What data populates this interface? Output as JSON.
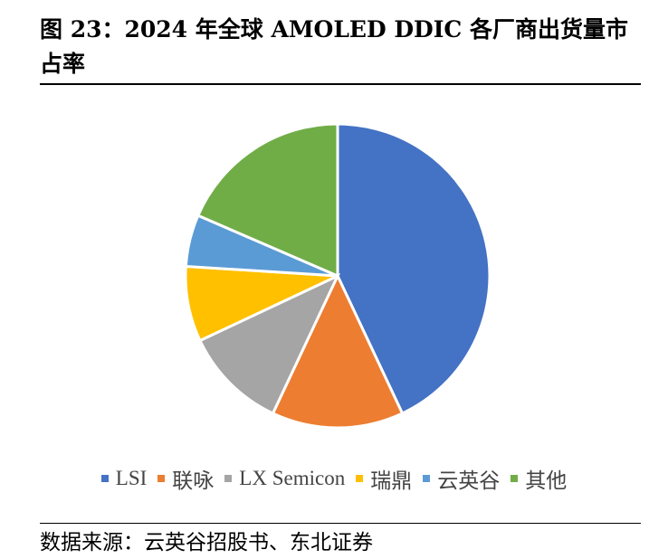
{
  "title": "图 23：2024 年全球 AMOLED DDIC 各厂商出货量市占率",
  "source": "数据来源：云英谷招股书、东北证券",
  "chart_data": {
    "type": "pie",
    "title": "图 23：2024 年全球 AMOLED DDIC 各厂商出货量市占率",
    "legend_position": "bottom",
    "series": [
      {
        "name": "LSI",
        "value": 43,
        "color": "#4472C4"
      },
      {
        "name": "联咏",
        "value": 14,
        "color": "#ED7D31"
      },
      {
        "name": "LX Semicon",
        "value": 11,
        "color": "#A5A5A5"
      },
      {
        "name": "瑞鼎",
        "value": 8,
        "color": "#FFC000"
      },
      {
        "name": "云英谷",
        "value": 5.5,
        "color": "#5B9BD5"
      },
      {
        "name": "其他",
        "value": 18.5,
        "color": "#70AD47"
      }
    ]
  }
}
